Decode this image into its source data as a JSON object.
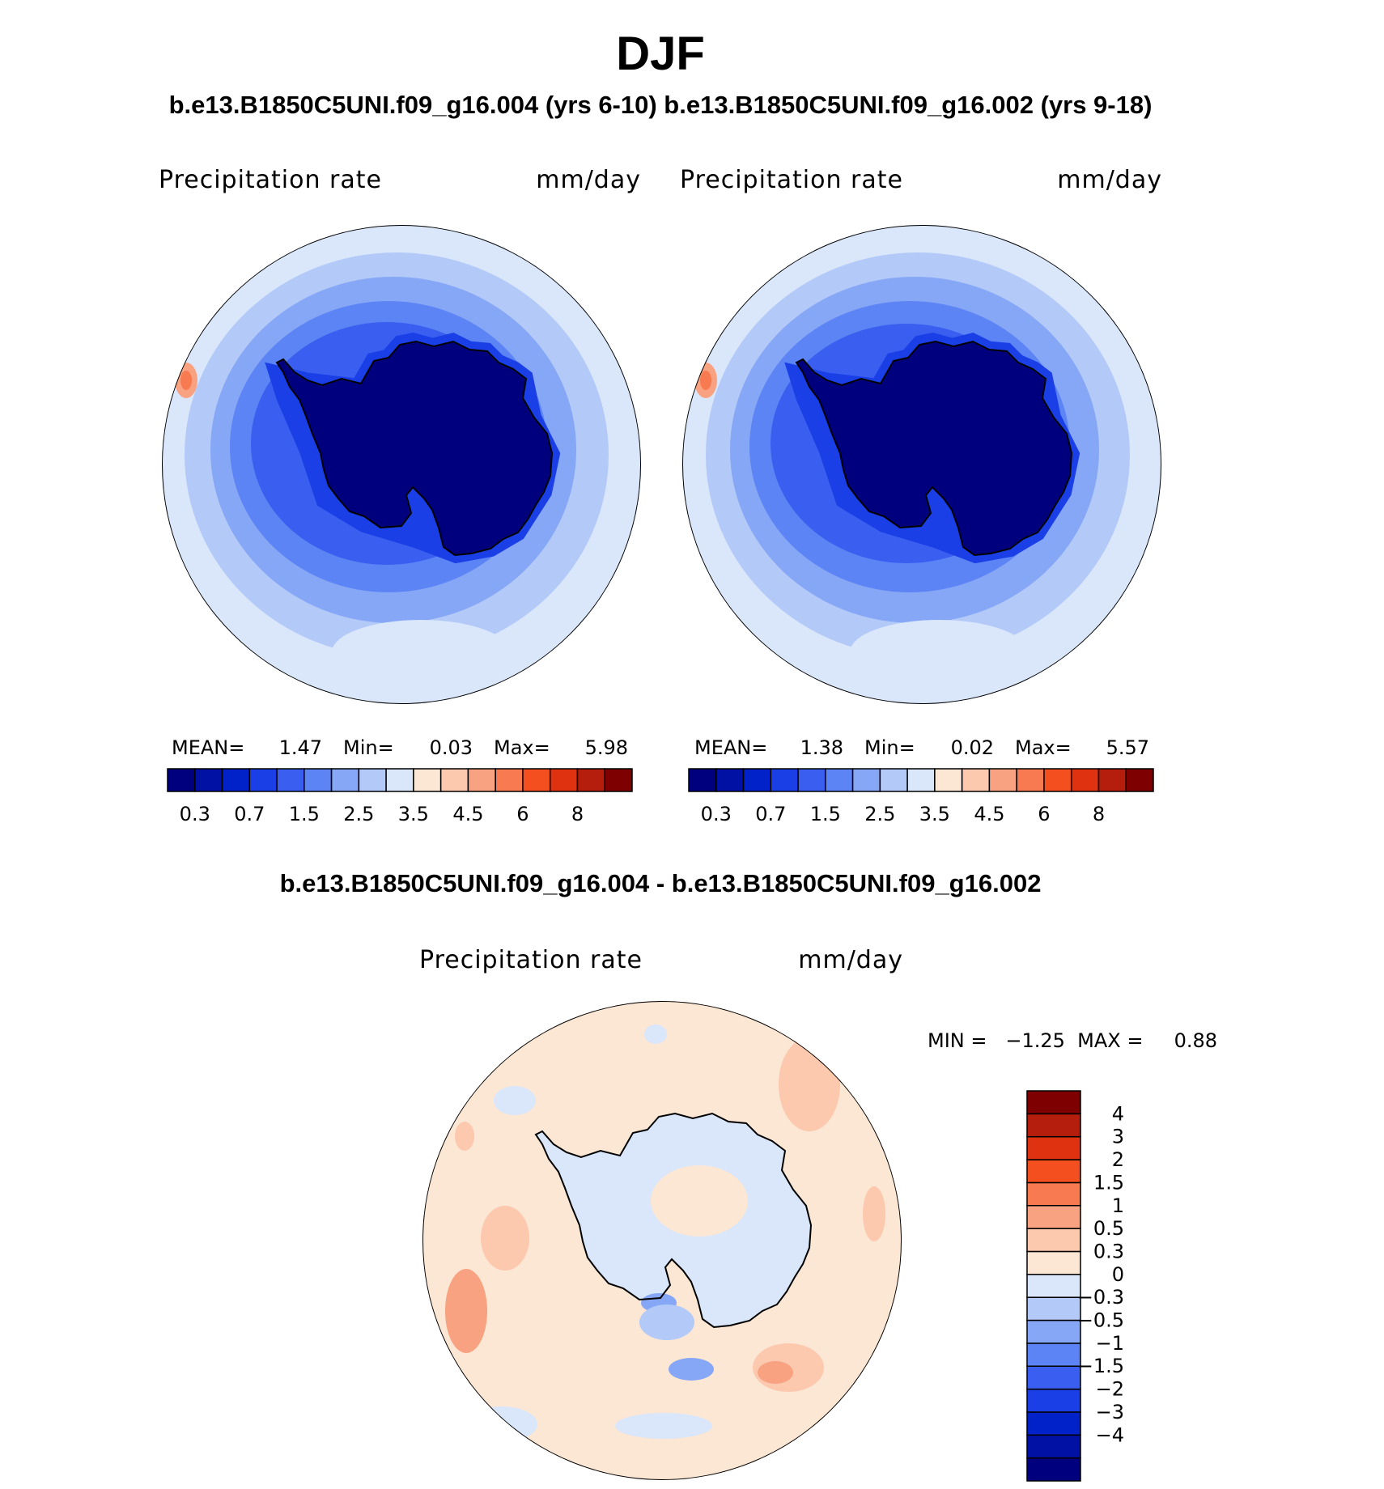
{
  "figure": {
    "title": "DJF",
    "top_subtitle": "b.e13.B1850C5UNI.f09_g16.004 (yrs 6-10) b.e13.B1850C5UNI.f09_g16.002 (yrs 9-18)",
    "diff_subtitle": "b.e13.B1850C5UNI.f09_g16.004 - b.e13.B1850C5UNI.f09_g16.002"
  },
  "panels": {
    "left": {
      "variable": "Precipitation  rate",
      "units": "mm/day",
      "mean_label": "MEAN=",
      "mean_value": "1.47",
      "min_label": "Min=",
      "min_value": "0.03",
      "max_label": "Max=",
      "max_value": "5.98"
    },
    "right": {
      "variable": "Precipitation  rate",
      "units": "mm/day",
      "mean_label": "MEAN=",
      "mean_value": "1.38",
      "min_label": "Min=",
      "min_value": "0.02",
      "max_label": "Max=",
      "max_value": "5.57"
    },
    "diff": {
      "variable": "Precipitation  rate",
      "units": "mm/day",
      "stats": "MIN =   −1.25  MAX =     0.88"
    }
  },
  "colorbar_top": {
    "colors": [
      "#00007f",
      "#0011a4",
      "#0022c8",
      "#1a3fe6",
      "#3a5ff0",
      "#5c84f4",
      "#86a6f6",
      "#b3c9f8",
      "#dae7fb",
      "#fce6d4",
      "#fcc8ae",
      "#f8a281",
      "#f77a50",
      "#f4501f",
      "#df3210",
      "#b51e0d",
      "#7f0000"
    ],
    "labels": [
      "0.3",
      "0.7",
      "1.5",
      "2.5",
      "3.5",
      "4.5",
      "6",
      "8"
    ]
  },
  "colorbar_diff": {
    "colors": [
      "#00007f",
      "#0011a4",
      "#0022c8",
      "#1a3fe6",
      "#3a5ff0",
      "#5c84f4",
      "#86a6f6",
      "#b3c9f8",
      "#dae7fb",
      "#fce6d4",
      "#fcc8ae",
      "#f8a281",
      "#f77a50",
      "#f4501f",
      "#df3210",
      "#b51e0d",
      "#7f0000"
    ],
    "labels": [
      "4",
      "3",
      "2",
      "1.5",
      "1",
      "0.5",
      "0.3",
      "0",
      "−0.3",
      "−0.5",
      "−1",
      "−1.5",
      "−2",
      "−3",
      "−4"
    ]
  },
  "chart_data": [
    {
      "type": "heatmap",
      "title": "Precipitation  rate",
      "units": "mm/day",
      "projection": "south-polar stereographic",
      "case": "b.e13.B1850C5UNI.f09_g16.004 (yrs 6-10)",
      "mean": 1.47,
      "min": 0.03,
      "max": 5.98,
      "levels": [
        0.2,
        0.3,
        0.5,
        0.7,
        1,
        1.5,
        2,
        2.5,
        3,
        3.5,
        4,
        4.5,
        5,
        6,
        7,
        8
      ]
    },
    {
      "type": "heatmap",
      "title": "Precipitation  rate",
      "units": "mm/day",
      "projection": "south-polar stereographic",
      "case": "b.e13.B1850C5UNI.f09_g16.002 (yrs 9-18)",
      "mean": 1.38,
      "min": 0.02,
      "max": 5.57,
      "levels": [
        0.2,
        0.3,
        0.5,
        0.7,
        1,
        1.5,
        2,
        2.5,
        3,
        3.5,
        4,
        4.5,
        5,
        6,
        7,
        8
      ]
    },
    {
      "type": "heatmap",
      "title": "Precipitation  rate",
      "units": "mm/day",
      "projection": "south-polar stereographic",
      "case": "b.e13.B1850C5UNI.f09_g16.004 - b.e13.B1850C5UNI.f09_g16.002",
      "min": -1.25,
      "max": 0.88,
      "levels": [
        -4,
        -3,
        -2,
        -1.5,
        -1,
        -0.5,
        -0.3,
        0,
        0.3,
        0.5,
        1,
        1.5,
        2,
        3,
        4
      ]
    }
  ]
}
